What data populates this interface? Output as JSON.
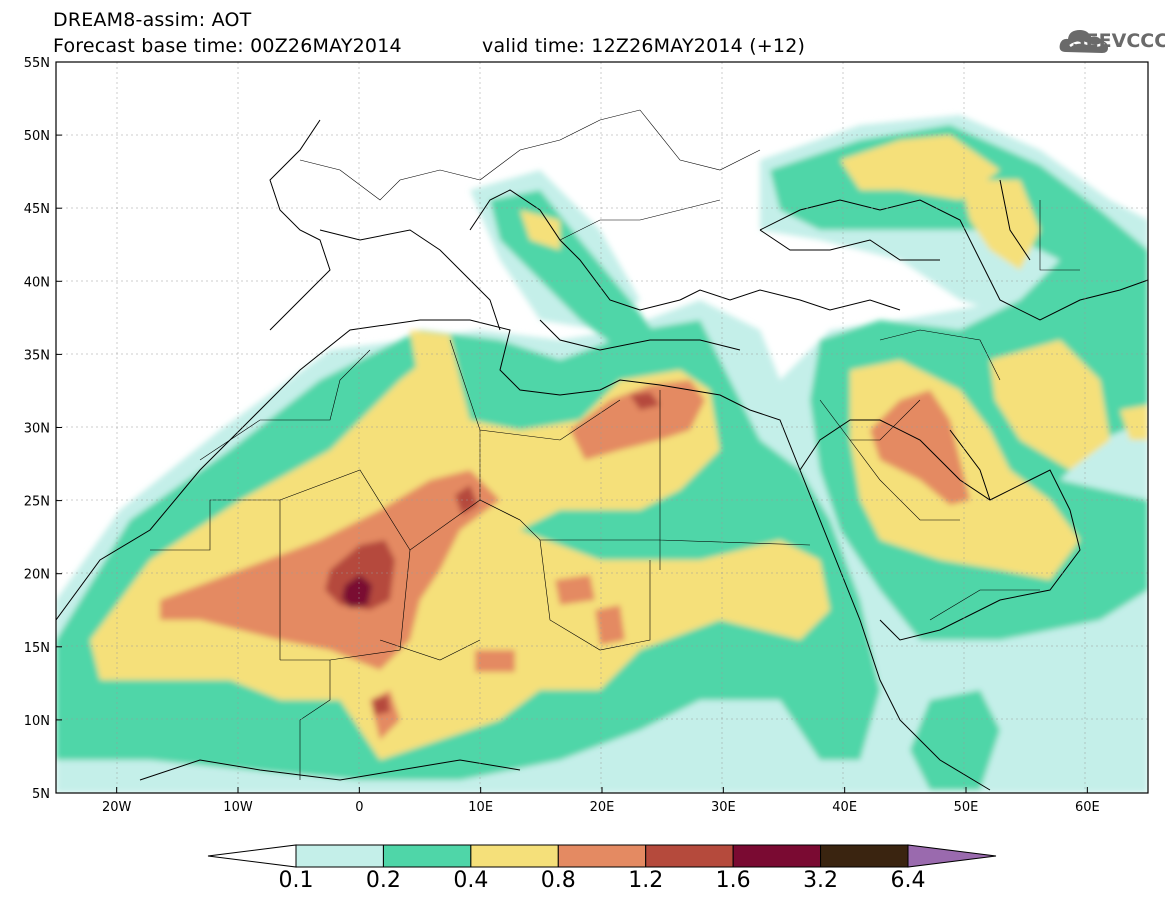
{
  "header": {
    "line1": "DREAM8-assim: AOT",
    "line2": "Forecast base time: 00Z26MAY2014",
    "line3": "valid time: 12Z26MAY2014 (+12)",
    "logo_text": "SEEVCCC"
  },
  "axes": {
    "lon_labels": [
      "20W",
      "10W",
      "0",
      "10E",
      "20E",
      "30E",
      "40E",
      "50E",
      "60E"
    ],
    "lat_labels": [
      "55N",
      "50N",
      "45N",
      "40N",
      "35N",
      "30N",
      "25N",
      "20N",
      "15N",
      "10N",
      "5N"
    ],
    "lon_range": [
      -25,
      65
    ],
    "lat_range": [
      5,
      55
    ]
  },
  "legend": {
    "bins": [
      {
        "color": "#c4efe9"
      },
      {
        "color": "#4fd6a8"
      },
      {
        "color": "#f5e07a"
      },
      {
        "color": "#e48a62"
      },
      {
        "color": "#b54a3c"
      },
      {
        "color": "#7a0a32"
      },
      {
        "color": "#3a2410"
      }
    ],
    "over_color": "#9a6aae",
    "under_color": "#ffffff",
    "labels": [
      "0.1",
      "0.2",
      "0.4",
      "0.8",
      "1.2",
      "1.6",
      "3.2",
      "6.4"
    ]
  }
}
